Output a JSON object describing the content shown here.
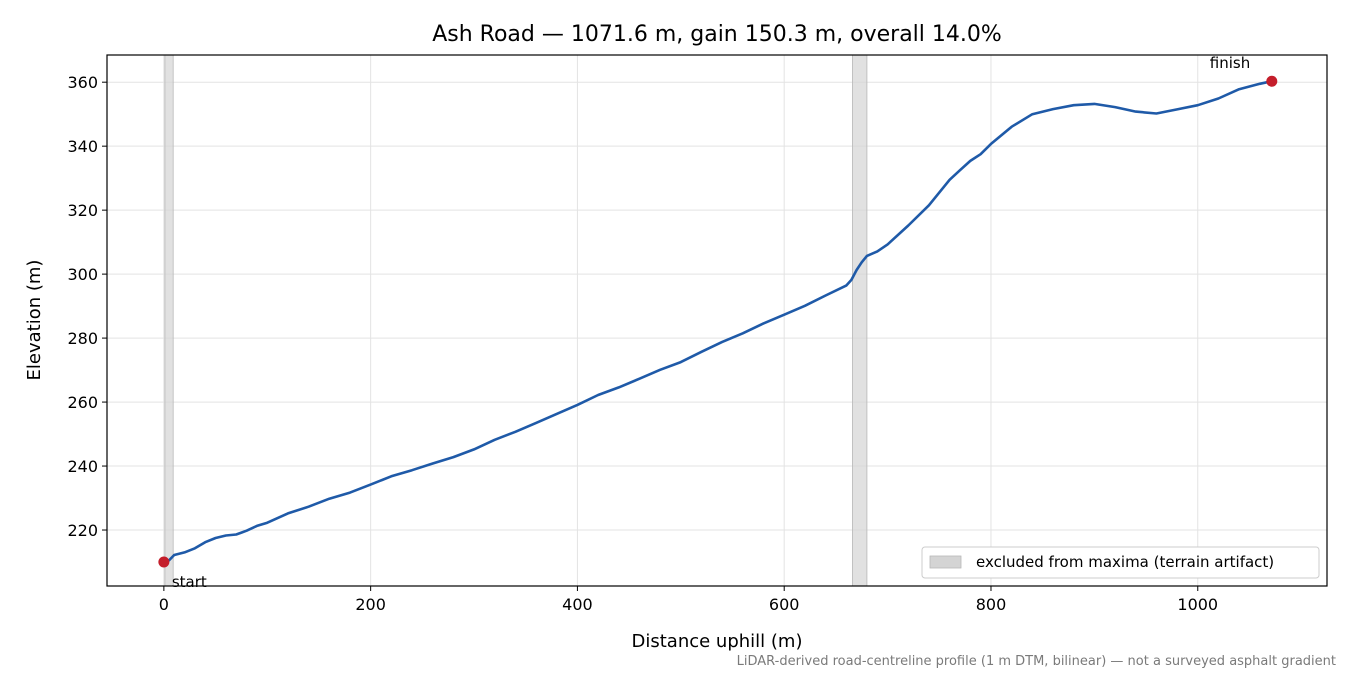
{
  "chart_data": {
    "type": "line",
    "title": "Ash Road — 1071.6 m, gain 150.3 m, overall 14.0%",
    "xlabel": "Distance uphill (m)",
    "ylabel": "Elevation (m)",
    "footnote": "LiDAR-derived road-centreline profile (1 m DTM, bilinear) — not a surveyed asphalt gradient",
    "xlim": [
      -55,
      1125
    ],
    "ylim": [
      202.5,
      368.5
    ],
    "xticks": [
      0,
      200,
      400,
      600,
      800,
      1000
    ],
    "yticks": [
      220,
      240,
      260,
      280,
      300,
      320,
      340,
      360
    ],
    "grid": true,
    "legend_position": "lower-right",
    "legend_label": "excluded from maxima (terrain artifact)",
    "colors": {
      "line": "#1f5aa8",
      "marker": "#c41e2b",
      "band": "#d4d4d4",
      "grid": "#e3e3e3"
    },
    "excluded_ranges": [
      [
        1,
        9
      ],
      [
        666,
        680
      ]
    ],
    "annotations": [
      {
        "text": "start",
        "x": 0,
        "y": 210
      },
      {
        "text": "finish",
        "x": 1071.6,
        "y": 360.3
      }
    ],
    "series": [
      {
        "x": [
          0,
          5,
          10,
          20,
          30,
          40,
          50,
          60,
          70,
          75,
          80,
          90,
          100,
          120,
          140,
          160,
          180,
          200,
          220,
          240,
          260,
          280,
          300,
          320,
          340,
          360,
          380,
          400,
          420,
          440,
          460,
          480,
          500,
          520,
          540,
          560,
          580,
          600,
          620,
          640,
          660,
          665,
          670,
          675,
          680,
          690,
          700,
          720,
          740,
          760,
          770,
          780,
          790,
          800,
          820,
          840,
          860,
          880,
          900,
          920,
          940,
          960,
          980,
          1000,
          1020,
          1040,
          1060,
          1071.6
        ],
        "y": [
          210,
          210.5,
          212.2,
          213,
          214.3,
          216.2,
          217.5,
          218.3,
          218.6,
          219.2,
          219.8,
          221.3,
          222.3,
          225.2,
          227.3,
          229.8,
          231.7,
          234.2,
          236.8,
          238.7,
          240.8,
          242.8,
          245.2,
          248.2,
          250.7,
          253.5,
          256.3,
          259.1,
          262.2,
          264.6,
          267.3,
          270.1,
          272.5,
          275.7,
          278.8,
          281.5,
          284.6,
          287.3,
          290.1,
          293.3,
          296.4,
          298.2,
          301.3,
          303.7,
          305.7,
          307.1,
          309.3,
          315.2,
          321.5,
          329.5,
          332.5,
          335.4,
          337.5,
          340.7,
          346.1,
          350,
          351.6,
          352.8,
          353.2,
          352.2,
          350.8,
          350.2,
          351.5,
          352.8,
          354.9,
          357.8,
          359.5,
          360.3
        ]
      }
    ]
  }
}
